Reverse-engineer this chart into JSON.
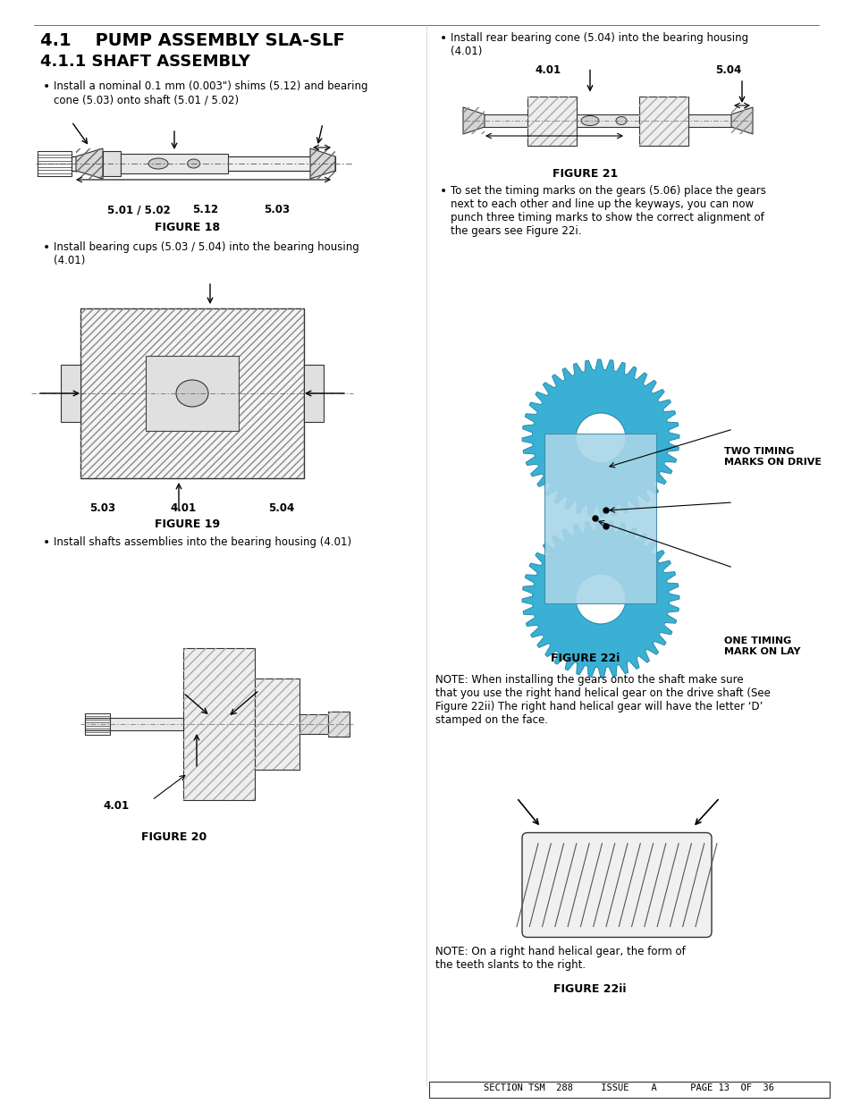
{
  "title1": "4.1    PUMP ASSEMBLY SLA-SLF",
  "title2": "4.1.1 SHAFT ASSEMBLY",
  "bg_color": "#ffffff",
  "text_color": "#000000",
  "border_color": "#333333",
  "bullet1_left": "Install a nominal 0.1 mm (0.003\") shims (5.12) and bearing\ncone (5.03) onto shaft (5.01 / 5.02)",
  "bullet2_left": "Install bearing cups (5.03 / 5.04) into the bearing housing\n(4.01)",
  "bullet3_left": "Install shafts assemblies into the bearing housing (4.01)",
  "bullet1_right": "Install rear bearing cone (5.04) into the bearing housing\n(4.01)",
  "bullet2_right": "To set the timing marks on the gears (5.06) place the gears\nnext to each other and line up the keyways, you can now\npunch three timing marks to show the correct alignment of\nthe gears see Figure 22i.",
  "fig18_caption": "FIGURE 18",
  "fig19_caption": "FIGURE 19",
  "fig20_caption": "FIGURE 20",
  "fig21_caption": "FIGURE 21",
  "fig22i_caption": "FIGURE 22i",
  "fig22ii_caption": "FIGURE 22ii",
  "note1": "NOTE: When installing the gears onto the shaft make sure\nthat you use the right hand helical gear on the drive shaft (See\nFigure 22ii) The right hand helical gear will have the letter ‘D’\nstamped on the face.",
  "note2": "NOTE: On a right hand helical gear, the form of\nthe teeth slants to the right.",
  "footer": "SECTION TSM  288     ISSUE    A      PAGE 13  OF  36",
  "two_timing": "TWO TIMING\nMARKS ON DRIVE",
  "one_timing": "ONE TIMING\nMARK ON LAY",
  "gear_color": "#3ab0d4",
  "gear_dark": "#2a8aaa",
  "label_501_502": "5.01 / 5.02",
  "label_512": "5.12",
  "label_503": "5.03",
  "label_401_fig19_left": "5.03",
  "label_401_fig19_mid": "4.01",
  "label_401_fig19_right": "5.04",
  "label_401_fig20": "4.01",
  "label_401_fig21_left": "4.01",
  "label_504_fig21_right": "5.04"
}
